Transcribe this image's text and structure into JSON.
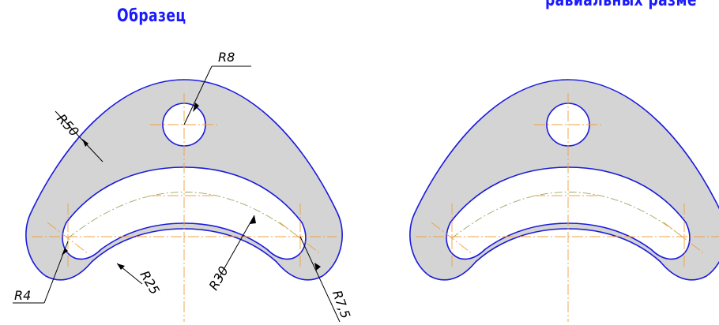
{
  "titles": {
    "left": "Образец",
    "right": "равиальных разме"
  },
  "dimensions": {
    "r8": "R8",
    "r50": "R50",
    "r25": "R25",
    "r30": "R30",
    "r4": "R4",
    "r75": "R7,5"
  },
  "colors": {
    "outline": "#1a1adc",
    "fill": "#d4d4d4",
    "centerline": "#f0a040",
    "title": "#1a1aff"
  }
}
